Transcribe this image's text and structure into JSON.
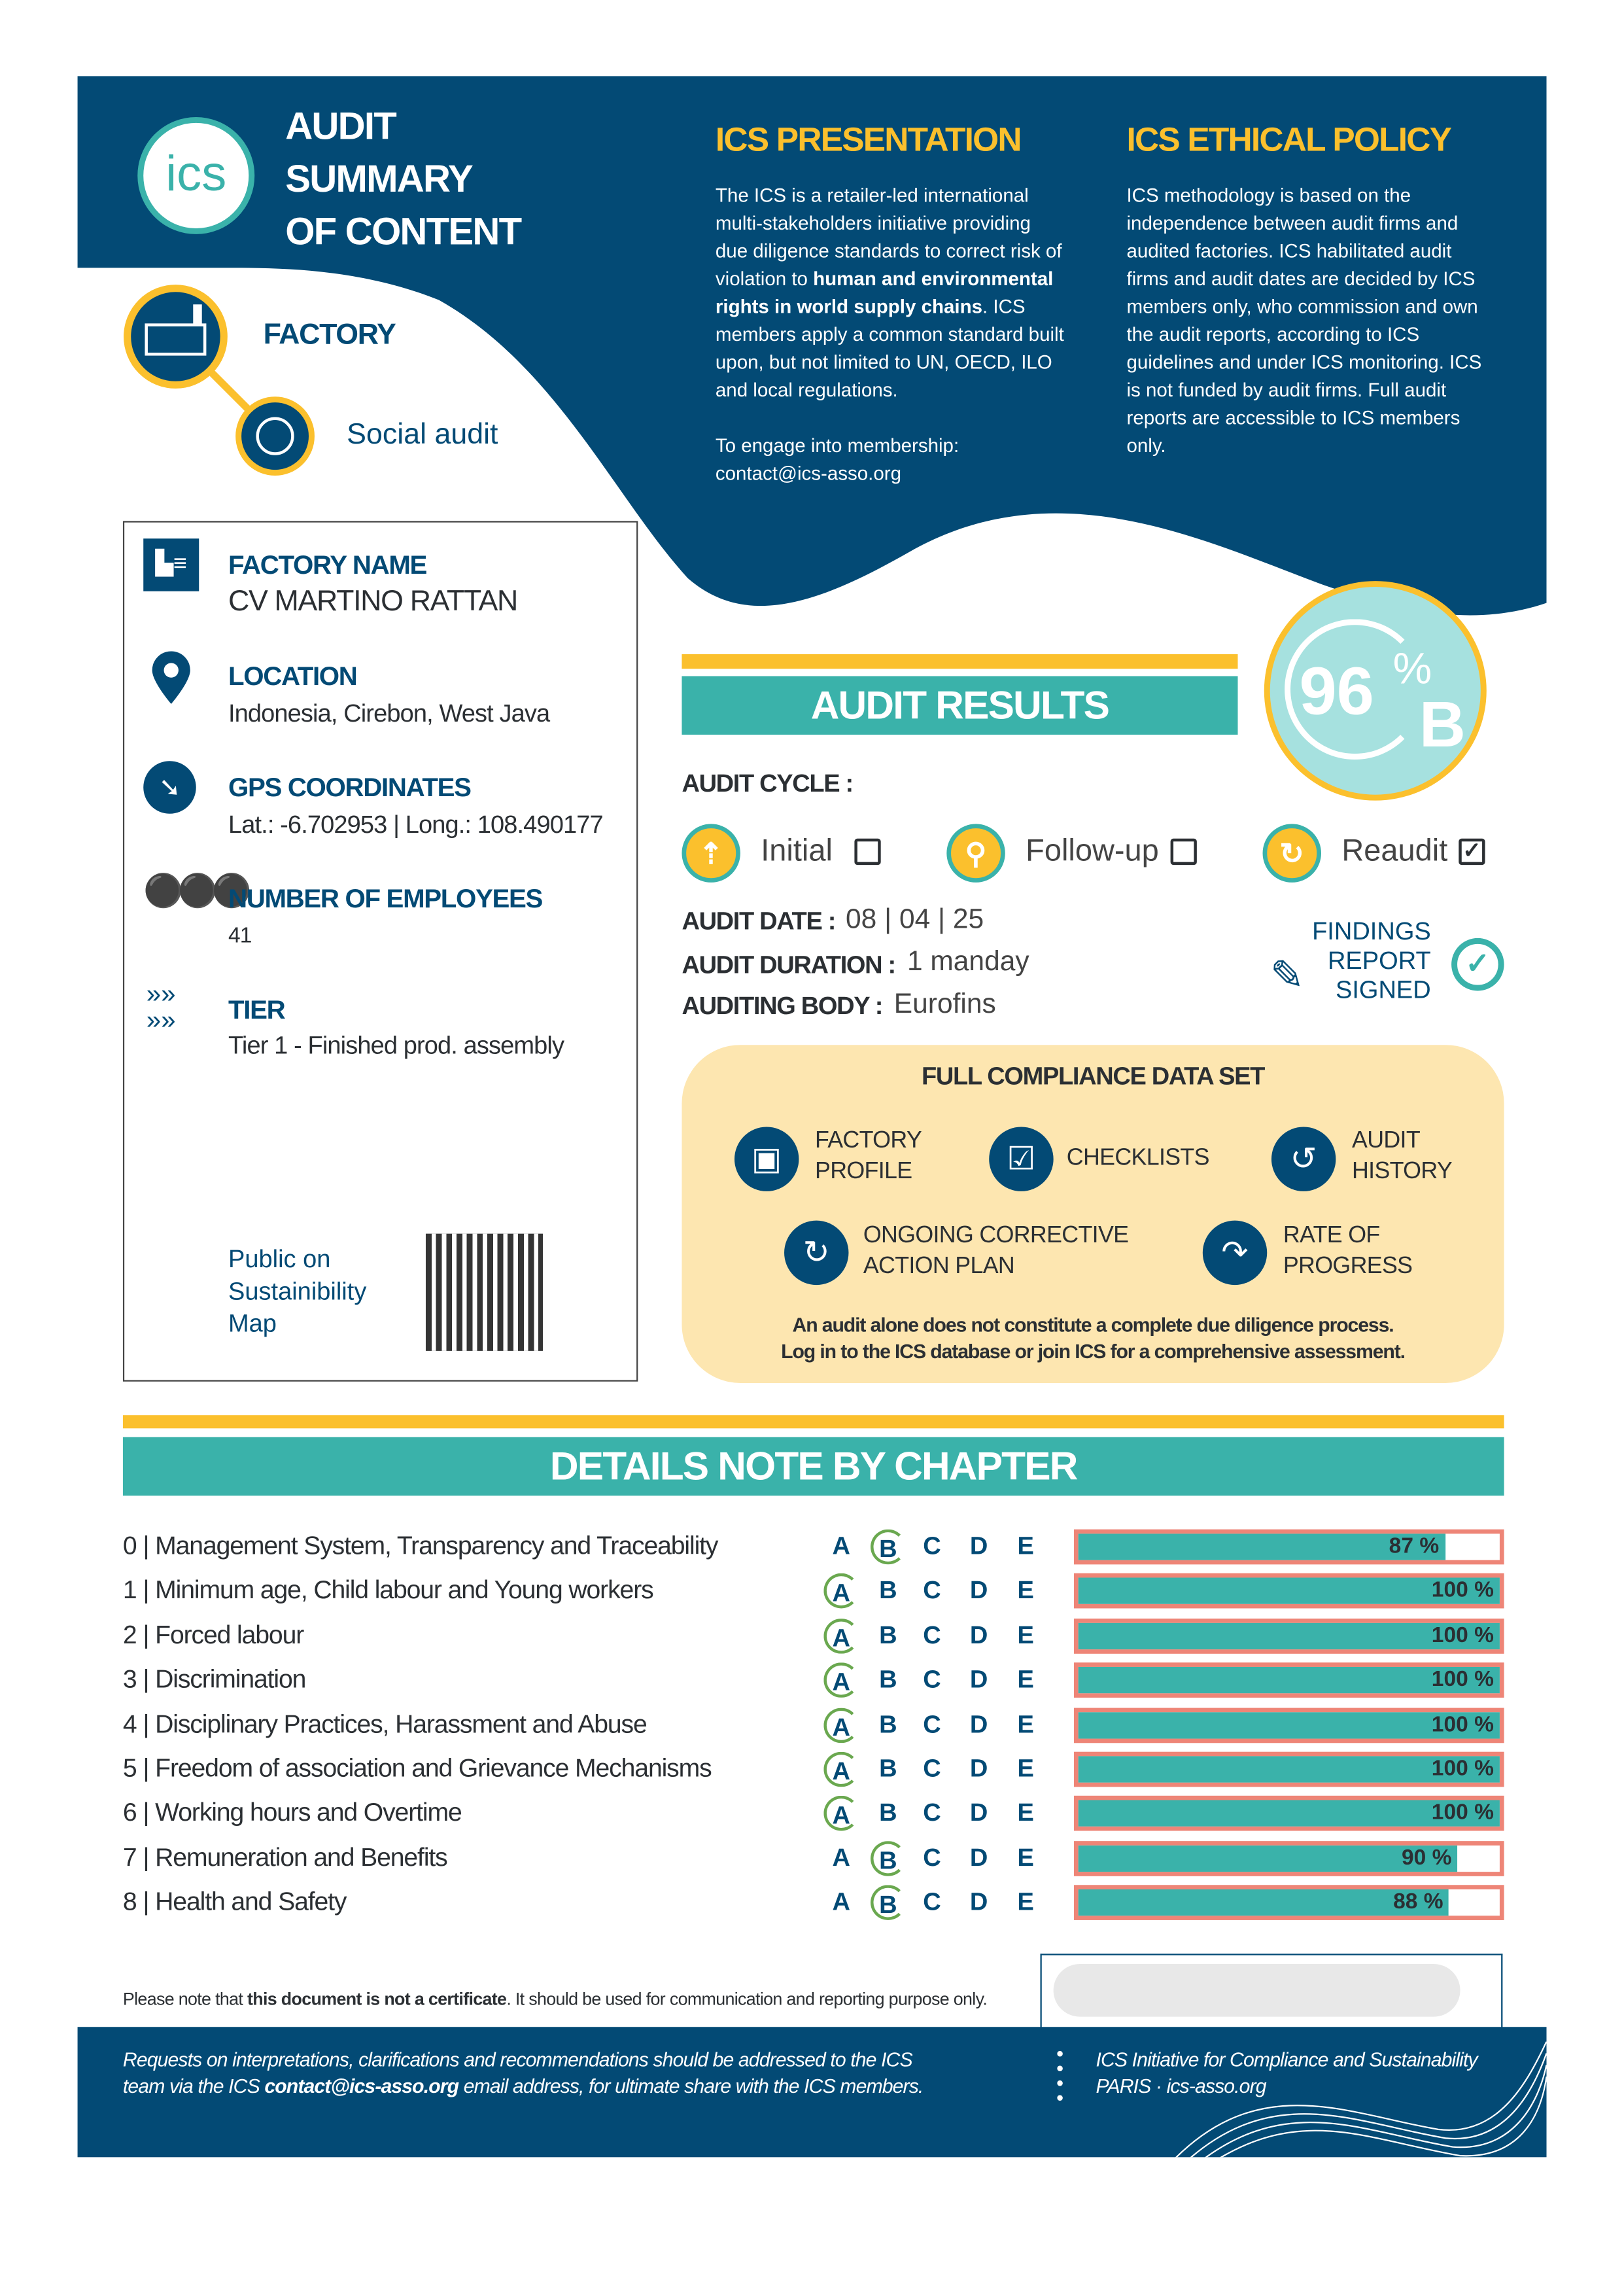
{
  "header": {
    "logo_text": "ics",
    "title_lines": [
      "AUDIT",
      "SUMMARY",
      "OF CONTENT"
    ],
    "category": "FACTORY",
    "audit_type": "Social audit"
  },
  "presentation": {
    "title": "ICS PRESENTATION",
    "text_before": "The ICS is a retailer-led international multi-stakeholders initiative providing due diligence standards to correct risk of violation to ",
    "text_bold": "human and environmental rights in world supply chains",
    "text_after": ". ICS members apply a common standard built upon, but not limited to UN, OECD, ILO and local regulations.",
    "membership_label": "To engage into membership:",
    "membership_email": "contact@ics-asso.org"
  },
  "ethical_policy": {
    "title": "ICS ETHICAL POLICY",
    "text": "ICS methodology is based on the independence between audit firms and audited factories. ICS habilitated audit firms and audit dates are decided by ICS members only, who commission and own the audit reports, according to ICS guidelines and under ICS monitoring. ICS is not funded by audit firms. Full audit reports are accessible to ICS members only."
  },
  "factory": {
    "name_label": "FACTORY NAME",
    "name": "CV MARTINO RATTAN",
    "location_label": "LOCATION",
    "location": "Indonesia, Cirebon, West Java",
    "gps_label": "GPS COORDINATES",
    "gps": "Lat.: -6.702953 | Long.: 108.490177",
    "employees_label": "NUMBER OF EMPLOYEES",
    "employees": "41",
    "tier_label": "TIER",
    "tier": "Tier 1 - Finished prod. assembly",
    "public_link": "Public on Sustainibility Map"
  },
  "audit_results": {
    "title": "AUDIT RESULTS",
    "score_percent": "96",
    "percent_sign": "%",
    "score_grade": "B",
    "cycle_label": "AUDIT CYCLE :",
    "cycle_options": [
      {
        "label": "Initial",
        "checked": false,
        "icon": "arrow-up-icon"
      },
      {
        "label": "Follow-up",
        "checked": false,
        "icon": "magnifier-icon"
      },
      {
        "label": "Reaudit",
        "checked": true,
        "icon": "refresh-icon"
      }
    ],
    "date_label": "AUDIT DATE :",
    "date_parts": [
      "08",
      "04",
      "25"
    ],
    "duration_label": "AUDIT DURATION :",
    "duration": "1 manday",
    "body_label": "AUDITING BODY :",
    "body": "Eurofins",
    "findings_lines": [
      "FINDINGS",
      "REPORT",
      "SIGNED"
    ]
  },
  "compliance": {
    "title": "FULL COMPLIANCE DATA SET",
    "items": [
      {
        "label": "FACTORY\nPROFILE",
        "icon": "badge-icon"
      },
      {
        "label": "CHECKLISTS",
        "icon": "checklist-icon"
      },
      {
        "label": "AUDIT\nHISTORY",
        "icon": "history-icon"
      },
      {
        "label": "ONGOING CORRECTIVE\nACTION PLAN",
        "icon": "cycle-icon"
      },
      {
        "label": "RATE OF\nPROGRESS",
        "icon": "progress-icon"
      }
    ],
    "note_line1": "An audit alone does not constitute a complete due diligence process.",
    "note_line2": "Log in to the ICS database or join ICS for a comprehensive assessment."
  },
  "details": {
    "title": "DETAILS NOTE BY CHAPTER",
    "grades": [
      "A",
      "B",
      "C",
      "D",
      "E"
    ],
    "chapters": [
      {
        "num": "0",
        "title": "Management System, Transparency and Traceability",
        "grade": "B",
        "percent": 87
      },
      {
        "num": "1",
        "title": "Minimum age, Child labour and Young workers",
        "grade": "A",
        "percent": 100
      },
      {
        "num": "2",
        "title": "Forced labour",
        "grade": "A",
        "percent": 100
      },
      {
        "num": "3",
        "title": "Discrimination",
        "grade": "A",
        "percent": 100
      },
      {
        "num": "4",
        "title": "Disciplinary Practices, Harassment and Abuse",
        "grade": "A",
        "percent": 100
      },
      {
        "num": "5",
        "title": "Freedom of association and Grievance Mechanisms",
        "grade": "A",
        "percent": 100
      },
      {
        "num": "6",
        "title": "Working hours and Overtime",
        "grade": "A",
        "percent": 100
      },
      {
        "num": "7",
        "title": "Remuneration and Benefits",
        "grade": "B",
        "percent": 90
      },
      {
        "num": "8",
        "title": "Health and Safety",
        "grade": "B",
        "percent": 88
      }
    ]
  },
  "disclaimer": {
    "before": "Please note that ",
    "bold": "this document is not a certificate",
    "after": ". It should be used for communication and reporting purpose only."
  },
  "footer": {
    "left_before": "Requests on interpretations, clarifications and recommendations should be addressed to the ICS team via the ICS ",
    "left_email": "contact@ics-asso.org",
    "left_after": " email address, for ultimate share with the ICS members.",
    "right_line1": "ICS Initiative for Compliance and Sustainability",
    "right_line2": "PARIS · ics-asso.org"
  },
  "colors": {
    "navy": "#034a75",
    "teal": "#3ab2aa",
    "yellow": "#fbc02d",
    "cream": "#fde6b0",
    "bar_border": "#ee8577",
    "grade_circle": "#6aa84f"
  }
}
